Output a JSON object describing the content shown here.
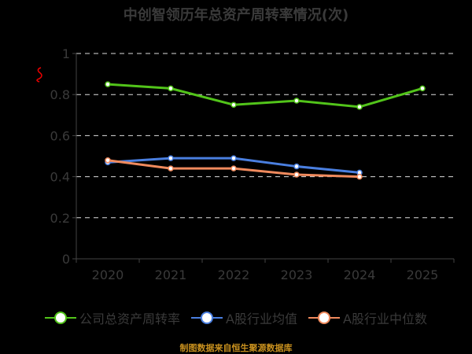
{
  "chart_data": {
    "type": "line",
    "title": "中创智领历年总资产周转率情况(次)",
    "categories": [
      "2020",
      "2021",
      "2022",
      "2023",
      "2024",
      "2025"
    ],
    "yticks": [
      "0",
      "0.2",
      "0.4",
      "0.6",
      "0.8",
      "1"
    ],
    "ylim": [
      0,
      1
    ],
    "grid": true,
    "legend_position": "bottom",
    "series": [
      {
        "name": "公司总资产周转率",
        "color": "#52c41a",
        "values": [
          0.85,
          0.83,
          0.75,
          0.77,
          0.74,
          0.83
        ]
      },
      {
        "name": "A股行业均值",
        "color": "#4a7fe0",
        "values": [
          0.47,
          0.49,
          0.49,
          0.45,
          0.42,
          null
        ]
      },
      {
        "name": "A股行业中位数",
        "color": "#f08a5d",
        "values": [
          0.48,
          0.44,
          0.44,
          0.41,
          0.4,
          null
        ]
      }
    ]
  },
  "source": "制图数据来自恒生聚源数据库"
}
